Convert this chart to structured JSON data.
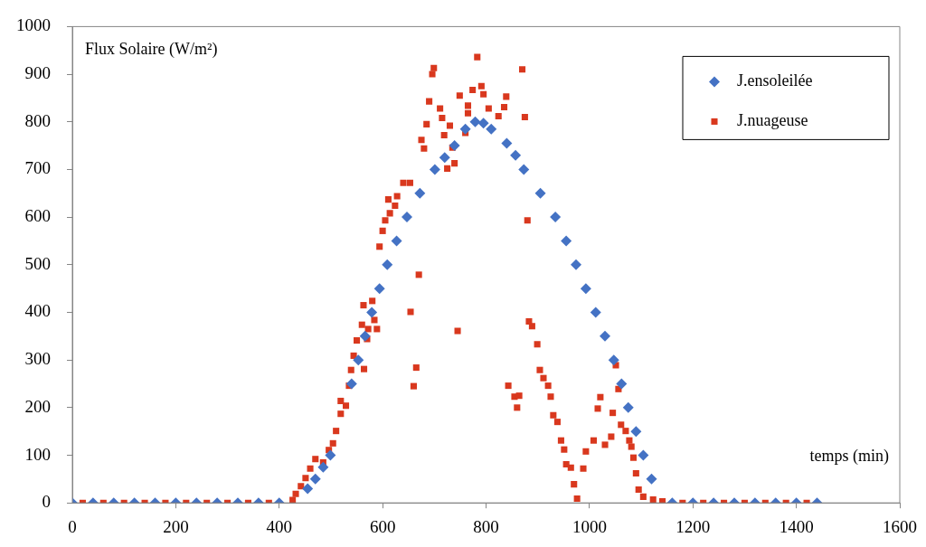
{
  "chart_data": {
    "type": "scatter",
    "xlabel": "temps (min)",
    "ylabel": "Flux Solaire (W/m²)",
    "xlim": [
      0,
      1600
    ],
    "xticks": [
      0,
      200,
      400,
      600,
      800,
      1000,
      1200,
      1400,
      1600
    ],
    "ylim": [
      0,
      1000
    ],
    "yticks": [
      0,
      100,
      200,
      300,
      400,
      500,
      600,
      700,
      800,
      900,
      1000
    ],
    "grid": false,
    "legend": "top right",
    "series": [
      {
        "name": "J.ensoleilée",
        "color": "#4472c4",
        "marker": "diamond",
        "x": [
          0,
          40,
          80,
          120,
          160,
          200,
          240,
          280,
          320,
          360,
          400,
          455,
          470,
          485,
          499,
          540,
          553,
          566,
          579,
          594,
          609,
          627,
          647,
          672,
          701,
          720,
          739,
          760,
          779,
          795,
          810,
          840,
          857,
          873,
          905,
          934,
          955,
          974,
          993,
          1012,
          1030,
          1047,
          1062,
          1075,
          1090,
          1104,
          1120,
          1160,
          1200,
          1240,
          1280,
          1320,
          1360,
          1400,
          1440
        ],
        "values": [
          0,
          0,
          0,
          0,
          0,
          0,
          0,
          0,
          0,
          0,
          0,
          30,
          50,
          75,
          100,
          250,
          300,
          350,
          400,
          450,
          500,
          550,
          600,
          650,
          700,
          725,
          750,
          785,
          800,
          797,
          785,
          755,
          730,
          700,
          650,
          600,
          550,
          500,
          450,
          400,
          350,
          300,
          250,
          200,
          150,
          100,
          50,
          0,
          0,
          0,
          0,
          0,
          0,
          0,
          0
        ]
      },
      {
        "name": "J.nuageuse",
        "color": "#d9381e",
        "marker": "square",
        "x": [
          20,
          60,
          100,
          140,
          180,
          220,
          260,
          300,
          340,
          380,
          426,
          432,
          442,
          451,
          460,
          470,
          485,
          496,
          504,
          510,
          519,
          519,
          529,
          535,
          539,
          544,
          550,
          560,
          563,
          564,
          570,
          572,
          580,
          584,
          589,
          594,
          600,
          605,
          611,
          614,
          624,
          628,
          640,
          653,
          654,
          660,
          665,
          670,
          675,
          680,
          685,
          690,
          696,
          699,
          711,
          715,
          719,
          725,
          730,
          735,
          739,
          745,
          749,
          760,
          765,
          765,
          774,
          783,
          791,
          795,
          805,
          824,
          835,
          839,
          843,
          855,
          860,
          864,
          870,
          875,
          880,
          883,
          889,
          899,
          904,
          911,
          920,
          925,
          930,
          938,
          945,
          951,
          955,
          964,
          970,
          976,
          988,
          993,
          1008,
          1016,
          1021,
          1030,
          1042,
          1045,
          1051,
          1056,
          1061,
          1070,
          1077,
          1081,
          1085,
          1090,
          1095,
          1104,
          1123,
          1141,
          1180,
          1220,
          1260,
          1300,
          1340,
          1380,
          1420
        ],
        "values": [
          0,
          0,
          0,
          0,
          0,
          0,
          0,
          0,
          0,
          0,
          6,
          19,
          35,
          52,
          72,
          92,
          85,
          111,
          125,
          151,
          187,
          214,
          204,
          246,
          279,
          309,
          341,
          374,
          415,
          281,
          344,
          365,
          424,
          384,
          365,
          538,
          571,
          593,
          637,
          608,
          624,
          644,
          672,
          672,
          401,
          245,
          284,
          479,
          762,
          744,
          795,
          843,
          900,
          913,
          828,
          808,
          772,
          702,
          792,
          746,
          713,
          361,
          855,
          777,
          834,
          818,
          867,
          936,
          875,
          858,
          828,
          812,
          831,
          853,
          246,
          223,
          200,
          225,
          910,
          810,
          593,
          381,
          371,
          333,
          279,
          262,
          246,
          223,
          184,
          170,
          131,
          112,
          81,
          74,
          39,
          9,
          72,
          108,
          131,
          198,
          222,
          122,
          139,
          189,
          289,
          239,
          164,
          151,
          131,
          118,
          95,
          62,
          28,
          13,
          7,
          3,
          0,
          0,
          0,
          0,
          0,
          0,
          0
        ]
      }
    ]
  }
}
